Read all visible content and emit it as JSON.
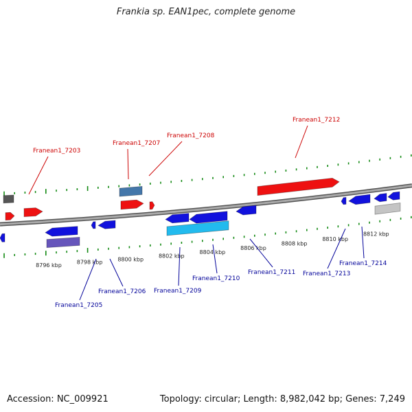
{
  "title": "Frankia sp. EAN1pec, complete genome",
  "footer": {
    "accession": "Accession: NC_009921",
    "summary": "Topology: circular; Length: 8,982,042 bp; Genes: 7,249"
  },
  "ticks": [
    {
      "pos": 8796,
      "label": "8796 kbp"
    },
    {
      "pos": 8798,
      "label": "8798 kbp"
    },
    {
      "pos": 8800,
      "label": "8800 kbp"
    },
    {
      "pos": 8802,
      "label": "8802 kbp"
    },
    {
      "pos": 8804,
      "label": "8804 kbp"
    },
    {
      "pos": 8806,
      "label": "8806 kbp"
    },
    {
      "pos": 8808,
      "label": "8808 kbp"
    },
    {
      "pos": 8810,
      "label": "8810 kbp"
    },
    {
      "pos": 8812,
      "label": "8812 kbp"
    }
  ],
  "labels_forward": [
    "Franean1_7203",
    "Franean1_7207",
    "Franean1_7208",
    "Franean1_7212"
  ],
  "labels_reverse": [
    "Franean1_7205",
    "Franean1_7206",
    "Franean1_7209",
    "Franean1_7210",
    "Franean1_7211",
    "Franean1_7213",
    "Franean1_7214"
  ],
  "colors": {
    "forward_cds": "#ee1111",
    "reverse_cds": "#1111dd",
    "forward_label": "#cc0000",
    "reverse_label": "#000099",
    "backbone": "#888888",
    "tick": "#118811",
    "rna_light_blue": "#22bbee",
    "steel_blue": "#4477aa",
    "purple": "#6655bb",
    "gray_feature": "#c4c4c4",
    "dark_gray": "#555555"
  }
}
